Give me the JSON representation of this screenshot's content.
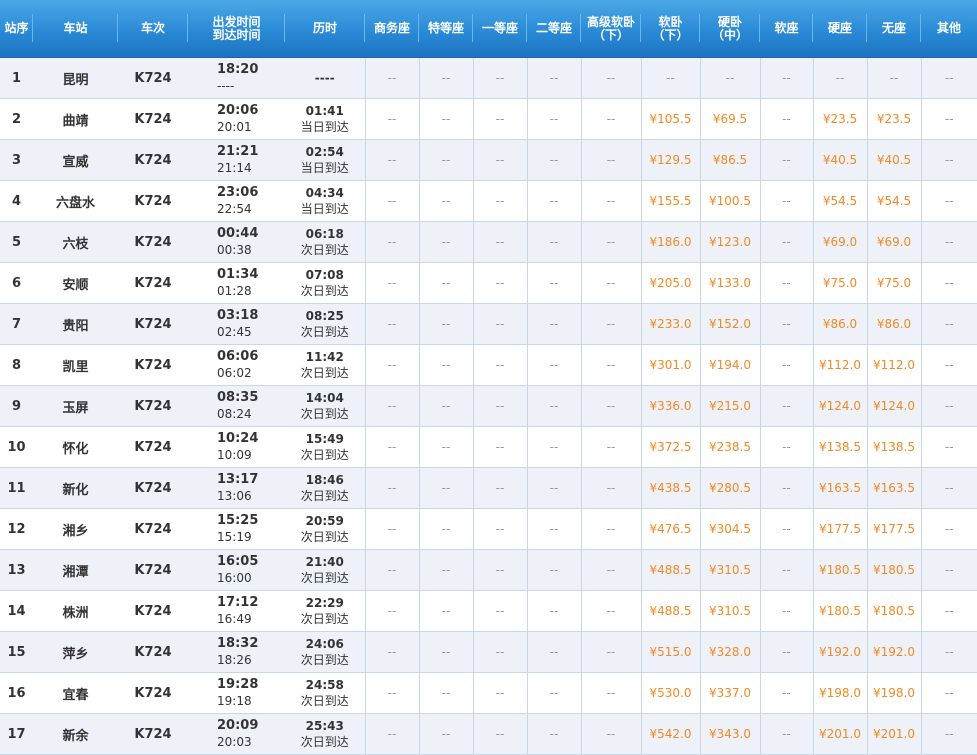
{
  "colors": {
    "header": "#2a8ad6",
    "price": "#f08a24",
    "row_alt": "#eef2f8"
  },
  "headers": [
    "站序",
    "车站",
    "车次",
    "出发时间\n到达时间",
    "历时",
    "商务座",
    "特等座",
    "一等座",
    "二等座",
    "高级软卧\n（下）",
    "软卧\n（下）",
    "硬卧\n（中）",
    "软座",
    "硬座",
    "无座",
    "其他"
  ],
  "rows": [
    {
      "no": "1",
      "station": "昆明",
      "train": "K724",
      "dep": "18:20",
      "arr": "----",
      "dur": "----",
      "day": "",
      "rw": "--",
      "yw": "--",
      "yz": "--",
      "wz": "--"
    },
    {
      "no": "2",
      "station": "曲靖",
      "train": "K724",
      "dep": "20:06",
      "arr": "20:01",
      "dur": "01:41",
      "day": "当日到达",
      "rw": "¥105.5",
      "yw": "¥69.5",
      "yz": "¥23.5",
      "wz": "¥23.5"
    },
    {
      "no": "3",
      "station": "宣威",
      "train": "K724",
      "dep": "21:21",
      "arr": "21:14",
      "dur": "02:54",
      "day": "当日到达",
      "rw": "¥129.5",
      "yw": "¥86.5",
      "yz": "¥40.5",
      "wz": "¥40.5"
    },
    {
      "no": "4",
      "station": "六盘水",
      "train": "K724",
      "dep": "23:06",
      "arr": "22:54",
      "dur": "04:34",
      "day": "当日到达",
      "rw": "¥155.5",
      "yw": "¥100.5",
      "yz": "¥54.5",
      "wz": "¥54.5"
    },
    {
      "no": "5",
      "station": "六枝",
      "train": "K724",
      "dep": "00:44",
      "arr": "00:38",
      "dur": "06:18",
      "day": "次日到达",
      "rw": "¥186.0",
      "yw": "¥123.0",
      "yz": "¥69.0",
      "wz": "¥69.0"
    },
    {
      "no": "6",
      "station": "安顺",
      "train": "K724",
      "dep": "01:34",
      "arr": "01:28",
      "dur": "07:08",
      "day": "次日到达",
      "rw": "¥205.0",
      "yw": "¥133.0",
      "yz": "¥75.0",
      "wz": "¥75.0"
    },
    {
      "no": "7",
      "station": "贵阳",
      "train": "K724",
      "dep": "03:18",
      "arr": "02:45",
      "dur": "08:25",
      "day": "次日到达",
      "rw": "¥233.0",
      "yw": "¥152.0",
      "yz": "¥86.0",
      "wz": "¥86.0"
    },
    {
      "no": "8",
      "station": "凯里",
      "train": "K724",
      "dep": "06:06",
      "arr": "06:02",
      "dur": "11:42",
      "day": "次日到达",
      "rw": "¥301.0",
      "yw": "¥194.0",
      "yz": "¥112.0",
      "wz": "¥112.0"
    },
    {
      "no": "9",
      "station": "玉屏",
      "train": "K724",
      "dep": "08:35",
      "arr": "08:24",
      "dur": "14:04",
      "day": "次日到达",
      "rw": "¥336.0",
      "yw": "¥215.0",
      "yz": "¥124.0",
      "wz": "¥124.0"
    },
    {
      "no": "10",
      "station": "怀化",
      "train": "K724",
      "dep": "10:24",
      "arr": "10:09",
      "dur": "15:49",
      "day": "次日到达",
      "rw": "¥372.5",
      "yw": "¥238.5",
      "yz": "¥138.5",
      "wz": "¥138.5"
    },
    {
      "no": "11",
      "station": "新化",
      "train": "K724",
      "dep": "13:17",
      "arr": "13:06",
      "dur": "18:46",
      "day": "次日到达",
      "rw": "¥438.5",
      "yw": "¥280.5",
      "yz": "¥163.5",
      "wz": "¥163.5"
    },
    {
      "no": "12",
      "station": "湘乡",
      "train": "K724",
      "dep": "15:25",
      "arr": "15:19",
      "dur": "20:59",
      "day": "次日到达",
      "rw": "¥476.5",
      "yw": "¥304.5",
      "yz": "¥177.5",
      "wz": "¥177.5"
    },
    {
      "no": "13",
      "station": "湘潭",
      "train": "K724",
      "dep": "16:05",
      "arr": "16:00",
      "dur": "21:40",
      "day": "次日到达",
      "rw": "¥488.5",
      "yw": "¥310.5",
      "yz": "¥180.5",
      "wz": "¥180.5"
    },
    {
      "no": "14",
      "station": "株洲",
      "train": "K724",
      "dep": "17:12",
      "arr": "16:49",
      "dur": "22:29",
      "day": "次日到达",
      "rw": "¥488.5",
      "yw": "¥310.5",
      "yz": "¥180.5",
      "wz": "¥180.5"
    },
    {
      "no": "15",
      "station": "萍乡",
      "train": "K724",
      "dep": "18:32",
      "arr": "18:26",
      "dur": "24:06",
      "day": "次日到达",
      "rw": "¥515.0",
      "yw": "¥328.0",
      "yz": "¥192.0",
      "wz": "¥192.0"
    },
    {
      "no": "16",
      "station": "宜春",
      "train": "K724",
      "dep": "19:28",
      "arr": "19:18",
      "dur": "24:58",
      "day": "次日到达",
      "rw": "¥530.0",
      "yw": "¥337.0",
      "yz": "¥198.0",
      "wz": "¥198.0"
    },
    {
      "no": "17",
      "station": "新余",
      "train": "K724",
      "dep": "20:09",
      "arr": "20:03",
      "dur": "25:43",
      "day": "次日到达",
      "rw": "¥542.0",
      "yw": "¥343.0",
      "yz": "¥201.0",
      "wz": "¥201.0"
    }
  ],
  "empty": "--"
}
